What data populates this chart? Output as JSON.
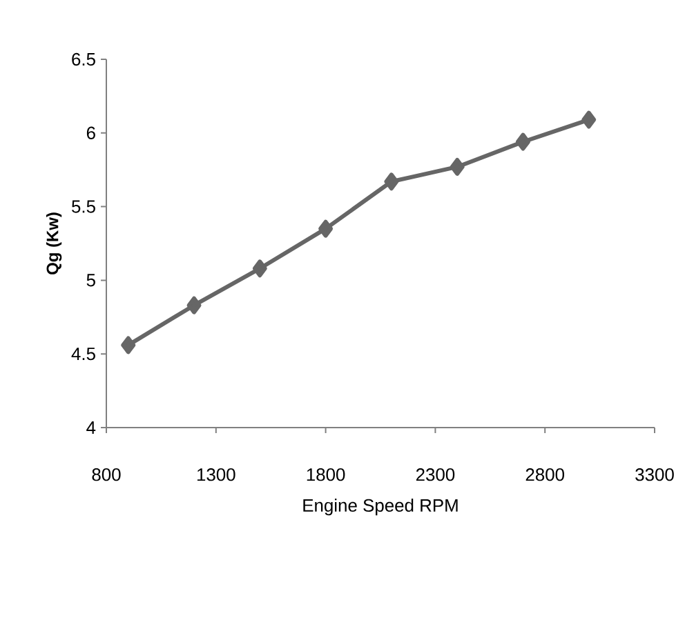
{
  "chart_data": {
    "type": "line",
    "xlabel": "Engine Speed RPM",
    "ylabel": "Qg (Kw)",
    "x": [
      900,
      1200,
      1500,
      1800,
      2100,
      2400,
      2700,
      3000
    ],
    "series": [
      {
        "color": "#666666",
        "values": [
          4.56,
          4.83,
          5.08,
          5.35,
          5.67,
          5.77,
          5.94,
          6.09
        ]
      }
    ],
    "xlim": [
      800,
      3300
    ],
    "xticks": [
      800,
      1300,
      1800,
      2300,
      2800,
      3300
    ],
    "ylim": [
      4,
      6.5
    ],
    "yticks": [
      4,
      4.5,
      5,
      5.5,
      6,
      6.5
    ],
    "marker": "diamond",
    "line_style": "solid"
  }
}
